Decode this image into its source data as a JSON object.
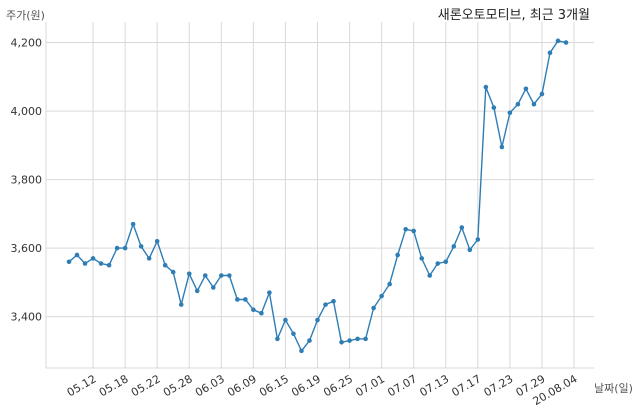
{
  "chart_data": {
    "type": "line",
    "title": "새론오토모티브, 최근 3개월",
    "ylabel": "주가(원)",
    "xlabel": "날짜(일)",
    "ylim": [
      3250,
      4260
    ],
    "yticks": [
      3400,
      3600,
      3800,
      4000,
      4200
    ],
    "ytick_labels": [
      "3,400",
      "3,600",
      "3,800",
      "4,000",
      "4,200"
    ],
    "xtick_labels": [
      "05.12",
      "05.18",
      "05.22",
      "05.28",
      "06.03",
      "06.09",
      "06.15",
      "06.19",
      "06.25",
      "07.01",
      "07.07",
      "07.13",
      "07.17",
      "07.23",
      "07.29",
      "20.08.04"
    ],
    "xtick_index": [
      3,
      7,
      11,
      15,
      19,
      23,
      27,
      31,
      35,
      39,
      43,
      47,
      51,
      55,
      59,
      63
    ],
    "grid": true,
    "line_color": "#2e7db5",
    "series": [
      {
        "values": [
          3560,
          3580,
          3555,
          3570,
          3555,
          3550,
          3600,
          3600,
          3670,
          3605,
          3570,
          3620,
          3550,
          3530,
          3435,
          3525,
          3475,
          3520,
          3485,
          3520,
          3520,
          3450,
          3450,
          3420,
          3410,
          3470,
          3335,
          3390,
          3350,
          3300,
          3330,
          3390,
          3435,
          3445,
          3325,
          3330,
          3335,
          3335,
          3425,
          3460,
          3495,
          3580,
          3655,
          3650,
          3570,
          3520,
          3555,
          3560,
          3605,
          3660,
          3595,
          3625,
          4070,
          4010,
          3895,
          3995,
          4020,
          4065,
          4020,
          4050,
          4170,
          4205,
          4200
        ]
      }
    ]
  }
}
